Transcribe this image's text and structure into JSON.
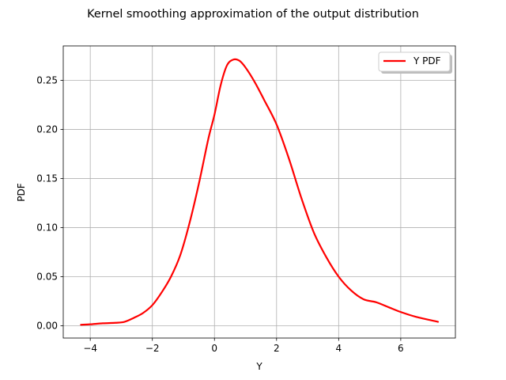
{
  "chart_data": {
    "type": "line",
    "title": "Kernel smoothing approximation of the output distribution",
    "xlabel": "Y",
    "ylabel": "PDF",
    "xlim": [
      -4.87,
      7.76
    ],
    "ylim": [
      -0.0125,
      0.285
    ],
    "xticks": [
      -4,
      -2,
      0,
      2,
      4,
      6
    ],
    "xtick_labels": [
      "−4",
      "−2",
      "0",
      "2",
      "4",
      "6"
    ],
    "yticks": [
      0.0,
      0.05,
      0.1,
      0.15,
      0.2,
      0.25
    ],
    "ytick_labels": [
      "0.00",
      "0.05",
      "0.10",
      "0.15",
      "0.20",
      "0.25"
    ],
    "grid": true,
    "legend_position": "top-right",
    "series": [
      {
        "name": "Y PDF",
        "color": "#ff0000",
        "x": [
          -4.3,
          -4.0,
          -3.6,
          -3.2,
          -2.9,
          -2.6,
          -2.3,
          -2.0,
          -1.7,
          -1.4,
          -1.1,
          -0.8,
          -0.5,
          -0.2,
          0.0,
          0.2,
          0.4,
          0.6,
          0.8,
          1.0,
          1.3,
          1.6,
          2.0,
          2.4,
          2.8,
          3.2,
          3.6,
          4.0,
          4.4,
          4.8,
          5.2,
          5.6,
          6.0,
          6.5,
          7.2
        ],
        "y": [
          0.001,
          0.0015,
          0.0025,
          0.003,
          0.004,
          0.008,
          0.013,
          0.021,
          0.034,
          0.05,
          0.072,
          0.105,
          0.145,
          0.19,
          0.215,
          0.245,
          0.265,
          0.271,
          0.27,
          0.263,
          0.248,
          0.23,
          0.205,
          0.17,
          0.13,
          0.095,
          0.07,
          0.05,
          0.036,
          0.027,
          0.024,
          0.019,
          0.014,
          0.009,
          0.004
        ]
      }
    ]
  }
}
